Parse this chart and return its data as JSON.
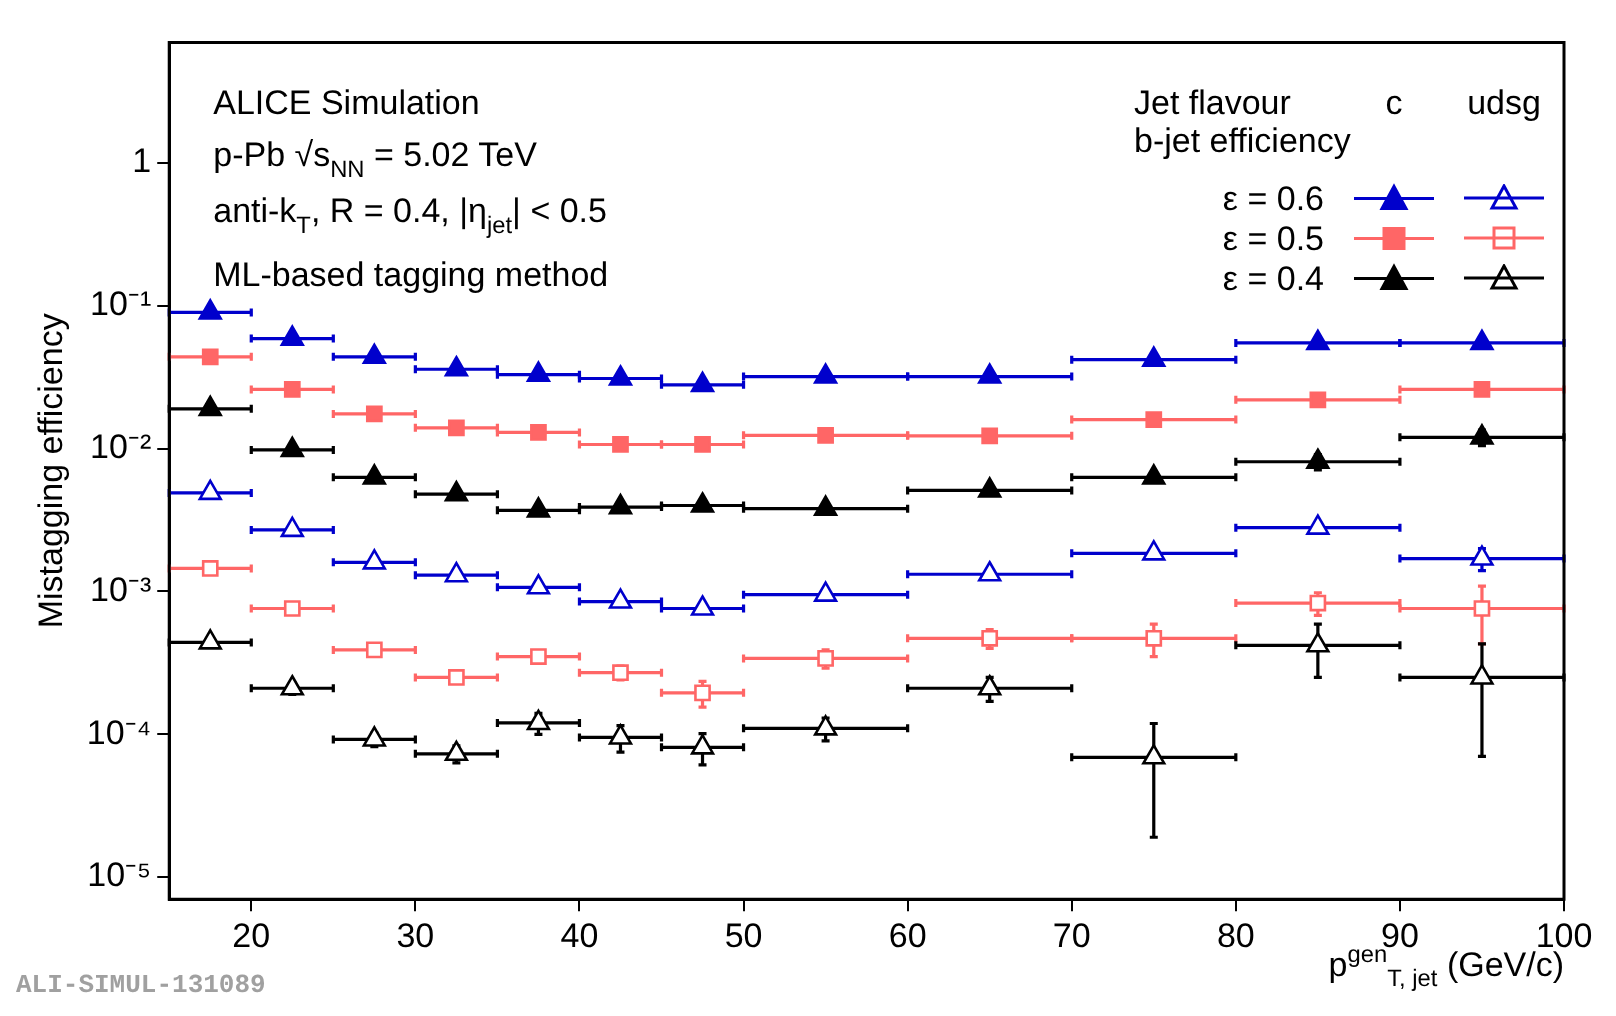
{
  "chart_data": {
    "type": "scatter",
    "xlabel": "p$^{gen}$$_{T, jet}$ (GeV/c)",
    "ylabel": "Mistagging efficiency",
    "legend_title": "Jet flavour",
    "annotations": [
      "ALICE Simulation",
      "p-Pb √s$_{NN}$ = 5.02 TeV",
      "anti-k$_{T}$, R = 0.4, |η$_{jet}$| < 0.5",
      "ML-based tagging method",
      "ALI-SIMUL-131089",
      "c",
      "udsg",
      "b-jet efficiency"
    ],
    "x": [
      17.5,
      22.5,
      27.5,
      32.5,
      37.5,
      42.5,
      47.5,
      55,
      65,
      75,
      85,
      95
    ],
    "series": [
      {
        "name": "ε = 0.6",
        "color": "#0000cc",
        "marker": "triangle",
        "values": [
          0.09,
          0.059,
          0.044,
          0.036,
          0.033,
          0.031,
          0.028,
          0.032,
          0.032,
          0.042,
          0.055,
          0.055
        ],
        "xerrors": [
          2.5,
          2.5,
          2.5,
          2.5,
          2.5,
          2.5,
          2.5,
          5,
          5,
          5,
          5,
          5
        ]
      },
      {
        "color": "#0000cc",
        "marker": "triangle",
        "values": [
          0.0049,
          0.0027,
          0.0016,
          0.0013,
          0.00107,
          0.00085,
          0.00076,
          0.00095,
          0.00132,
          0.00185,
          0.0028,
          0.0017
        ],
        "xerrors": [
          2.5,
          2.5,
          2.5,
          2.5,
          2.5,
          2.5,
          2.5,
          5,
          5,
          5,
          5,
          5
        ],
        "errors": [
          null,
          null,
          null,
          null,
          null,
          null,
          null,
          null,
          null,
          null,
          0.0002,
          0.0003
        ]
      },
      {
        "name": "ε = 0.5",
        "color": "#ff6666",
        "marker": "square",
        "values": [
          0.044,
          0.026,
          0.0175,
          0.014,
          0.013,
          0.0107,
          0.0107,
          0.0124,
          0.0123,
          0.016,
          0.022,
          0.026
        ],
        "xerrors": [
          2.5,
          2.5,
          2.5,
          2.5,
          2.5,
          2.5,
          2.5,
          5,
          5,
          5,
          5,
          5
        ]
      },
      {
        "color": "#ff6666",
        "marker": "square",
        "values": [
          0.00145,
          0.00076,
          0.00039,
          0.00025,
          0.00035,
          0.00027,
          0.000195,
          0.00034,
          0.00047,
          0.00047,
          0.00083,
          0.00076
        ],
        "xerrors": [
          2.5,
          2.5,
          2.5,
          2.5,
          2.5,
          2.5,
          2.5,
          5,
          5,
          5,
          5,
          5
        ],
        "errors": [
          null,
          null,
          null,
          null,
          null,
          3e-05,
          4e-05,
          5e-05,
          7e-05,
          0.00012,
          0.00015,
          0.00033
        ]
      },
      {
        "name": "ε = 0.4",
        "color": "#000000",
        "marker": "triangle",
        "values": [
          0.019,
          0.0098,
          0.0063,
          0.0048,
          0.0037,
          0.0039,
          0.004,
          0.0038,
          0.0051,
          0.0063,
          0.0081,
          0.012
        ],
        "xerrors": [
          2.5,
          2.5,
          2.5,
          2.5,
          2.5,
          2.5,
          2.5,
          5,
          5,
          5,
          5,
          5
        ],
        "errors": [
          null,
          null,
          null,
          null,
          null,
          null,
          null,
          null,
          null,
          null,
          0.001,
          0.0015
        ]
      },
      {
        "color": "#000000",
        "marker": "triangle",
        "values": [
          0.00044,
          0.00021,
          9.2e-05,
          7.3e-05,
          0.00012,
          9.5e-05,
          8.1e-05,
          0.00011,
          0.00021,
          6.9e-05,
          0.00042,
          0.00025
        ],
        "xerrors": [
          2.5,
          2.5,
          2.5,
          2.5,
          2.5,
          2.5,
          2.5,
          5,
          5,
          5,
          5,
          5
        ],
        "errors": [
          3e-05,
          2e-05,
          1e-05,
          1e-05,
          2e-05,
          2e-05,
          2e-05,
          2e-05,
          4e-05,
          5e-05,
          0.00017,
          0.00018
        ]
      }
    ],
    "xlim": [
      15,
      100
    ],
    "xticks": [
      20,
      30,
      40,
      50,
      60,
      70,
      80,
      90,
      100
    ],
    "ylim": [
      7e-06,
      7
    ],
    "log": "y",
    "yticks": [
      {
        "value": 1e-05,
        "label": "10⁻⁵"
      },
      {
        "value": 0.0001,
        "label": "10⁻⁴"
      },
      {
        "value": 0.001,
        "label": "10⁻³"
      },
      {
        "value": 0.01,
        "label": "10⁻²"
      },
      {
        "value": 0.1,
        "label": "10⁻¹"
      },
      1
    ],
    "grid": false,
    "legend": "top right"
  }
}
